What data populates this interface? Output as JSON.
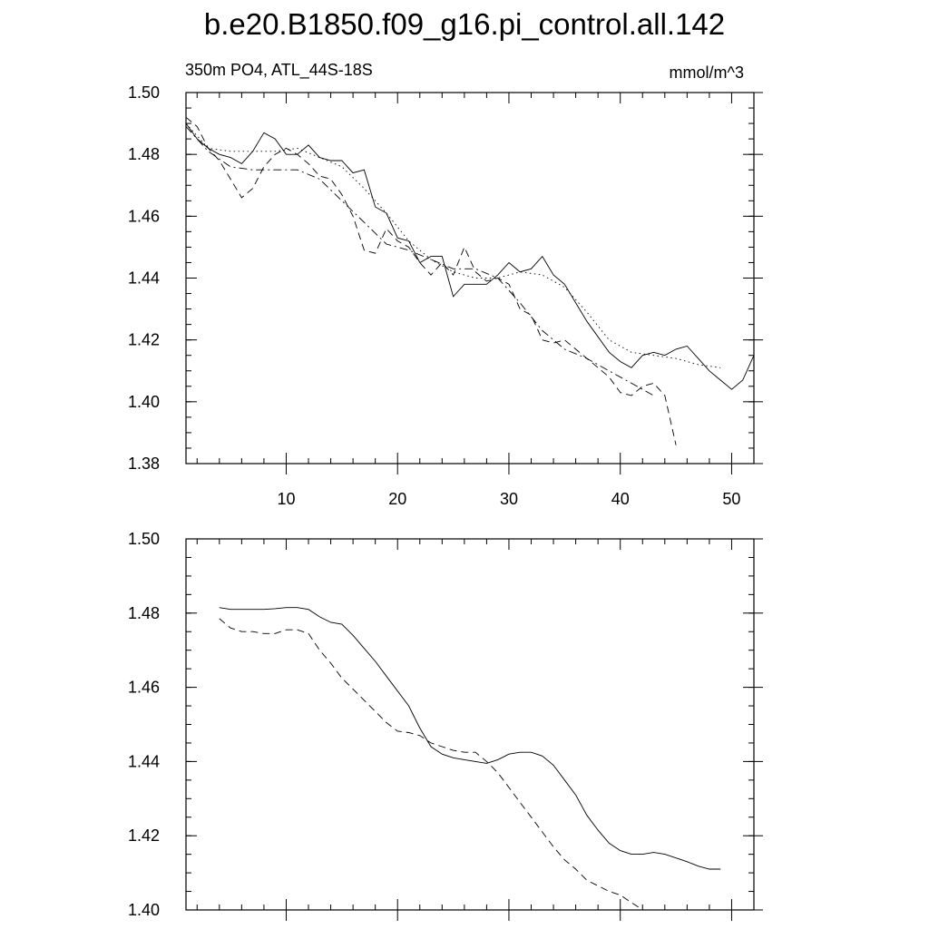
{
  "title": "b.e20.B1850.f09_g16.pi_control.all.142",
  "chart_data": [
    {
      "type": "line",
      "left_label": "350m PO4, ATL_44S-18S",
      "right_label": "mmol/m^3",
      "xlim": [
        1,
        52
      ],
      "ylim": [
        1.38,
        1.5
      ],
      "xticks": [
        10,
        20,
        30,
        40,
        50
      ],
      "yticks": [
        1.38,
        1.4,
        1.42,
        1.44,
        1.46,
        1.48,
        1.5
      ],
      "grid": false,
      "series": [
        {
          "style": "solid",
          "x": [
            1,
            2,
            3,
            4,
            5,
            6,
            7,
            8,
            9,
            10,
            11,
            12,
            13,
            14,
            15,
            16,
            17,
            18,
            19,
            20,
            21,
            22,
            23,
            24,
            25,
            26,
            27,
            28,
            29,
            30,
            31,
            32,
            33,
            34,
            35,
            36,
            37,
            38,
            39,
            40,
            41,
            42,
            43,
            44,
            45,
            46,
            47,
            48,
            49,
            50,
            51,
            52
          ],
          "y": [
            1.49,
            1.485,
            1.482,
            1.48,
            1.479,
            1.477,
            1.481,
            1.487,
            1.485,
            1.48,
            1.48,
            1.483,
            1.479,
            1.478,
            1.478,
            1.474,
            1.475,
            1.463,
            1.461,
            1.453,
            1.452,
            1.445,
            1.447,
            1.447,
            1.434,
            1.438,
            1.438,
            1.438,
            1.441,
            1.445,
            1.442,
            1.443,
            1.447,
            1.441,
            1.438,
            1.432,
            1.426,
            1.421,
            1.416,
            1.413,
            1.411,
            1.415,
            1.416,
            1.415,
            1.417,
            1.418,
            1.414,
            1.41,
            1.407,
            1.404,
            1.407,
            1.415
          ]
        },
        {
          "style": "dashed",
          "x": [
            1,
            2,
            3,
            4,
            5,
            6,
            7,
            8,
            9,
            10,
            11,
            12,
            13,
            14,
            15,
            16,
            17,
            18,
            19,
            20,
            21,
            22,
            23,
            24,
            25,
            26,
            27,
            28,
            29,
            30,
            31,
            32,
            33,
            34,
            35,
            36,
            37,
            38,
            39,
            40,
            41,
            42,
            43,
            44,
            45
          ],
          "y": [
            1.492,
            1.489,
            1.482,
            1.478,
            1.472,
            1.466,
            1.469,
            1.476,
            1.48,
            1.482,
            1.48,
            1.477,
            1.473,
            1.472,
            1.467,
            1.46,
            1.449,
            1.448,
            1.456,
            1.452,
            1.45,
            1.445,
            1.441,
            1.445,
            1.441,
            1.45,
            1.442,
            1.439,
            1.44,
            1.438,
            1.43,
            1.428,
            1.42,
            1.419,
            1.42,
            1.417,
            1.414,
            1.411,
            1.408,
            1.403,
            1.402,
            1.405,
            1.406,
            1.402,
            1.386
          ]
        },
        {
          "style": "dotted",
          "x": [
            1,
            3,
            5,
            7,
            9,
            11,
            13,
            15,
            17,
            19,
            21,
            23,
            25,
            27,
            29,
            31,
            33,
            35,
            37,
            39,
            41,
            43,
            45,
            47,
            49
          ],
          "y": [
            1.49,
            1.482,
            1.481,
            1.481,
            1.481,
            1.482,
            1.479,
            1.476,
            1.469,
            1.461,
            1.452,
            1.446,
            1.442,
            1.44,
            1.44,
            1.442,
            1.441,
            1.437,
            1.429,
            1.42,
            1.416,
            1.415,
            1.414,
            1.412,
            1.411
          ]
        },
        {
          "style": "dashdot",
          "x": [
            1,
            3,
            5,
            7,
            9,
            11,
            13,
            15,
            17,
            19,
            21,
            23,
            25,
            27,
            29,
            31,
            33,
            35,
            37,
            39,
            41,
            43
          ],
          "y": [
            1.489,
            1.481,
            1.476,
            1.475,
            1.475,
            1.475,
            1.472,
            1.465,
            1.458,
            1.451,
            1.449,
            1.446,
            1.443,
            1.443,
            1.44,
            1.432,
            1.423,
            1.417,
            1.414,
            1.41,
            1.406,
            1.402
          ]
        }
      ]
    },
    {
      "type": "line",
      "xlim": [
        1,
        52
      ],
      "ylim": [
        1.4,
        1.5
      ],
      "xticks": [
        10,
        20,
        30,
        40,
        50
      ],
      "yticks": [
        1.4,
        1.42,
        1.44,
        1.46,
        1.48,
        1.5
      ],
      "grid": false,
      "series": [
        {
          "style": "solid",
          "x": [
            4,
            5,
            6,
            7,
            8,
            9,
            10,
            11,
            12,
            13,
            14,
            15,
            16,
            17,
            18,
            19,
            20,
            21,
            22,
            23,
            24,
            25,
            26,
            27,
            28,
            29,
            30,
            31,
            32,
            33,
            34,
            35,
            36,
            37,
            38,
            39,
            40,
            41,
            42,
            43,
            44,
            45,
            46,
            47,
            48,
            49
          ],
          "y": [
            1.4815,
            1.481,
            1.481,
            1.481,
            1.481,
            1.4812,
            1.4815,
            1.4815,
            1.481,
            1.479,
            1.4775,
            1.477,
            1.474,
            1.4705,
            1.467,
            1.463,
            1.459,
            1.455,
            1.449,
            1.444,
            1.442,
            1.441,
            1.4405,
            1.44,
            1.4395,
            1.4405,
            1.442,
            1.4425,
            1.4425,
            1.4415,
            1.439,
            1.435,
            1.431,
            1.4255,
            1.4215,
            1.418,
            1.416,
            1.415,
            1.415,
            1.4155,
            1.415,
            1.414,
            1.413,
            1.4118,
            1.411,
            1.411
          ]
        },
        {
          "style": "dashed",
          "x": [
            4,
            5,
            6,
            7,
            8,
            9,
            10,
            11,
            12,
            13,
            14,
            15,
            16,
            17,
            18,
            19,
            20,
            21,
            22,
            23,
            24,
            25,
            26,
            27,
            28,
            29,
            30,
            31,
            32,
            33,
            34,
            35,
            36,
            37,
            38,
            39,
            40,
            41,
            42
          ],
          "y": [
            1.4785,
            1.476,
            1.475,
            1.475,
            1.4745,
            1.4745,
            1.4755,
            1.4755,
            1.4745,
            1.47,
            1.4665,
            1.4625,
            1.4595,
            1.4565,
            1.4535,
            1.4505,
            1.4482,
            1.4478,
            1.447,
            1.445,
            1.444,
            1.443,
            1.4425,
            1.4425,
            1.44,
            1.437,
            1.433,
            1.429,
            1.425,
            1.421,
            1.417,
            1.4135,
            1.411,
            1.408,
            1.4065,
            1.405,
            1.404,
            1.402,
            1.4
          ]
        }
      ]
    }
  ]
}
